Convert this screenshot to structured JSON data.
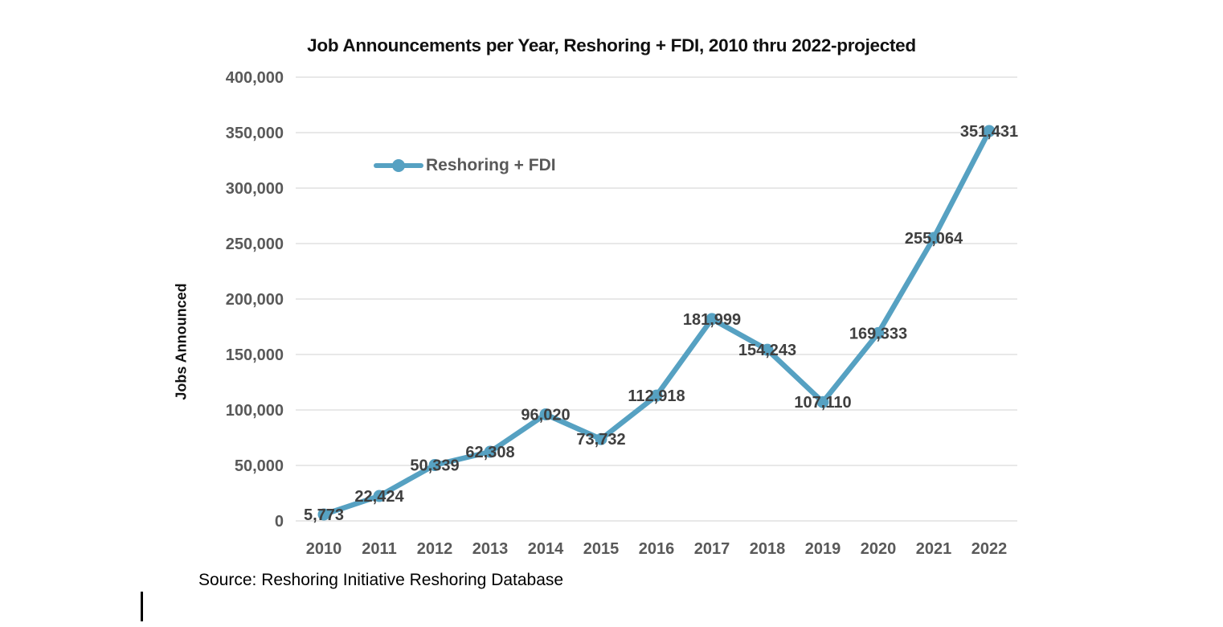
{
  "page": {
    "background": "#ffffff",
    "source_note": "Source: Reshoring Initiative Reshoring Database"
  },
  "chart_data": {
    "type": "line",
    "title": "Job Announcements per Year, Reshoring + FDI, 2010 thru 2022-projected",
    "xlabel": "",
    "ylabel": "Jobs Announced",
    "categories": [
      "2010",
      "2011",
      "2012",
      "2013",
      "2014",
      "2015",
      "2016",
      "2017",
      "2018",
      "2019",
      "2020",
      "2021",
      "2022"
    ],
    "series": [
      {
        "name": "Reshoring + FDI",
        "values": [
          5773,
          22424,
          50339,
          62308,
          96020,
          73732,
          112918,
          181999,
          154243,
          107110,
          169333,
          255064,
          351431
        ],
        "data_labels": [
          "5,773",
          "22,424",
          "50,339",
          "62,308",
          "96,020",
          "73,732",
          "112,918",
          "181,999",
          "154,243",
          "107,110",
          "169,333",
          "255,064",
          "351,431"
        ],
        "marker": "circle"
      }
    ],
    "ylim": [
      0,
      400000
    ],
    "ytick_step": 50000,
    "ytick_labels": [
      "0",
      "50,000",
      "100,000",
      "150,000",
      "200,000",
      "250,000",
      "300,000",
      "350,000",
      "400,000"
    ],
    "grid": "horizontal",
    "legend": {
      "position": "inside-top-left",
      "entries": [
        "Reshoring + FDI"
      ]
    },
    "colors": {
      "line": "#56a1c2",
      "gridline": "#d9d9d9",
      "tick_label": "#595959",
      "data_label": "#3f3f3f",
      "title": "#111111"
    }
  }
}
